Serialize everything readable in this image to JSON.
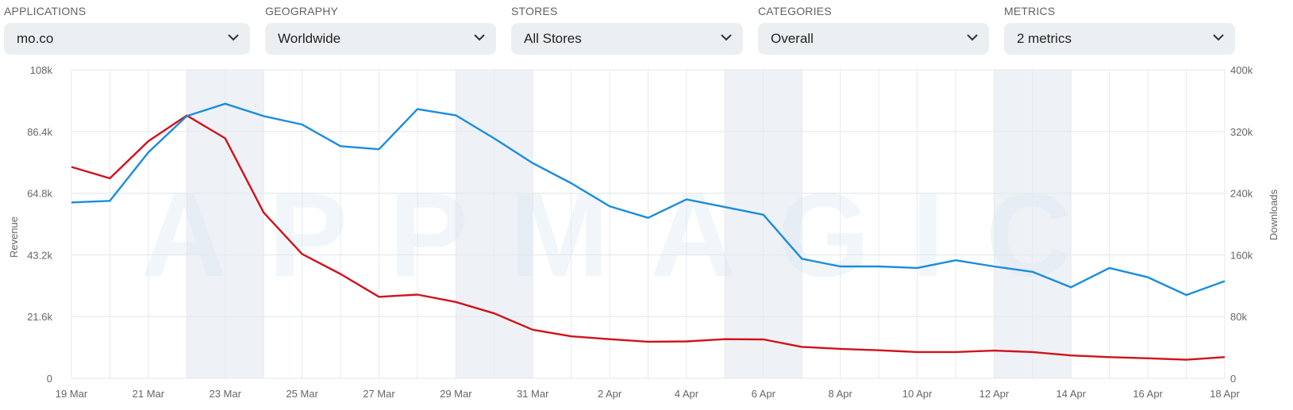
{
  "filters": [
    {
      "label": "APPLICATIONS",
      "value": "mo.co"
    },
    {
      "label": "GEOGRAPHY",
      "value": "Worldwide"
    },
    {
      "label": "STORES",
      "value": "All Stores"
    },
    {
      "label": "CATEGORIES",
      "value": "Overall"
    },
    {
      "label": "METRICS",
      "value": "2 metrics"
    }
  ],
  "watermark": "APPMAGIC",
  "colors": {
    "revenue": "#d0121b",
    "downloads": "#1a8ddb",
    "weekend_band": "#eef2f6",
    "grid": "#e6e9ec"
  },
  "chart_data": {
    "type": "line",
    "x": [
      "19 Mar",
      "20 Mar",
      "21 Mar",
      "22 Mar",
      "23 Mar",
      "24 Mar",
      "25 Mar",
      "26 Mar",
      "27 Mar",
      "28 Mar",
      "29 Mar",
      "30 Mar",
      "31 Mar",
      "1 Apr",
      "2 Apr",
      "3 Apr",
      "4 Apr",
      "5 Apr",
      "6 Apr",
      "7 Apr",
      "8 Apr",
      "9 Apr",
      "10 Apr",
      "11 Apr",
      "12 Apr",
      "13 Apr",
      "14 Apr",
      "15 Apr",
      "16 Apr",
      "17 Apr",
      "18 Apr"
    ],
    "x_tick_labels": [
      "19 Mar",
      "21 Mar",
      "23 Mar",
      "25 Mar",
      "27 Mar",
      "29 Mar",
      "31 Mar",
      "2 Apr",
      "4 Apr",
      "6 Apr",
      "8 Apr",
      "10 Apr",
      "12 Apr",
      "14 Apr",
      "16 Apr",
      "18 Apr"
    ],
    "shaded_ranges": [
      [
        "22 Mar",
        "24 Mar"
      ],
      [
        "29 Mar",
        "31 Mar"
      ],
      [
        "5 Apr",
        "7 Apr"
      ],
      [
        "12 Apr",
        "14 Apr"
      ]
    ],
    "y_left": {
      "label": "Revenue",
      "ticks": [
        "0",
        "21.6k",
        "43.2k",
        "64.8k",
        "86.4k",
        "108k"
      ],
      "range": [
        0,
        108000
      ]
    },
    "y_right": {
      "label": "Downloads",
      "ticks": [
        "0",
        "80k",
        "160k",
        "240k",
        "320k",
        "400k"
      ],
      "range": [
        0,
        400000
      ]
    },
    "series": [
      {
        "axis": "left",
        "color": "#d0121b",
        "values": [
          74000,
          70000,
          83000,
          92000,
          84000,
          58000,
          43500,
          36500,
          28500,
          29300,
          26700,
          22700,
          17000,
          14700,
          13700,
          12800,
          12900,
          13700,
          13600,
          11000,
          10300,
          9800,
          9200,
          9200,
          9700,
          9200,
          8000,
          7400,
          7000,
          6500,
          7400
        ]
      },
      {
        "axis": "right",
        "color": "#1a8ddb",
        "values": [
          228000,
          230000,
          293000,
          340000,
          356000,
          340000,
          329000,
          301000,
          297000,
          349000,
          341000,
          311000,
          279000,
          253000,
          223000,
          208000,
          232000,
          222000,
          212000,
          155000,
          145000,
          145000,
          143000,
          153000,
          145000,
          138000,
          118000,
          143000,
          131000,
          108000,
          126000
        ]
      }
    ],
    "grid": true
  }
}
